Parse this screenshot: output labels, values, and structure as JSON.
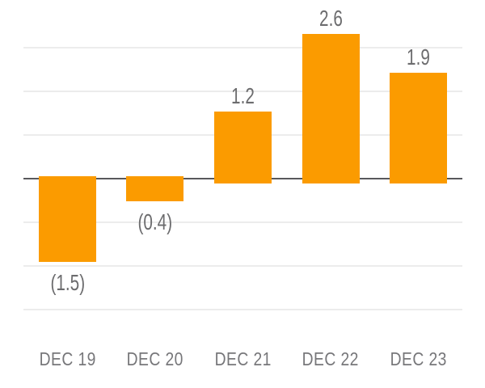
{
  "chart_data": {
    "type": "bar",
    "title": "",
    "xlabel": "",
    "ylabel": "",
    "categories": [
      "DEC 19",
      "DEC 20",
      "DEC 21",
      "DEC 22",
      "DEC 23"
    ],
    "values": [
      -1.5,
      -0.4,
      1.2,
      2.6,
      1.9
    ],
    "value_labels": [
      "(1.5)",
      "(0.4)",
      "1.2",
      "2.6",
      "1.9"
    ],
    "negative_format": "parentheses",
    "baseline": 0,
    "ylim": [
      -2.4,
      3.2
    ],
    "gridline_step": 0.8,
    "grid": "horizontal-only",
    "legend": "none",
    "y_axis_ticks": "none",
    "colors": {
      "bar": "#FB9B00",
      "gridline": "#ECECEC",
      "zero_line": "#58585C",
      "value_text": "#6C6C6E",
      "axis_text": "#77777A",
      "background": "#FFFFFF"
    }
  }
}
